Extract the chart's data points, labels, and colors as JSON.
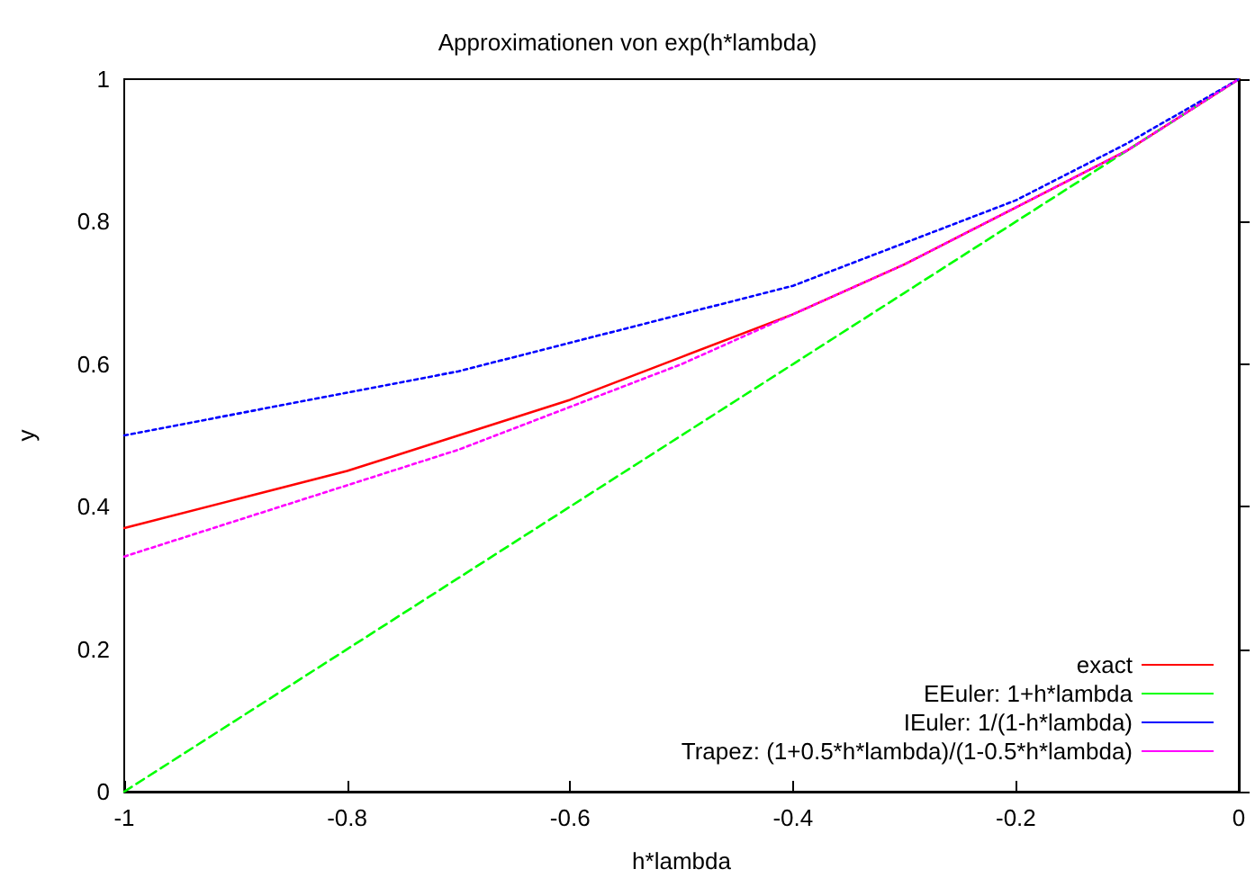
{
  "chart_data": {
    "type": "line",
    "title": "Approximationen von exp(h*lambda)",
    "xlabel": "h*lambda",
    "ylabel": "y",
    "x": [
      -1,
      -0.9,
      -0.8,
      -0.7,
      -0.6,
      -0.5,
      -0.4,
      -0.3,
      -0.2,
      -0.1,
      0
    ],
    "series": [
      {
        "name": "exact",
        "color": "#ff0000",
        "line_style": "solid",
        "values": [
          0.37,
          0.41,
          0.45,
          0.5,
          0.55,
          0.61,
          0.67,
          0.74,
          0.82,
          0.9,
          1
        ]
      },
      {
        "name": "EEuler: 1+h*lambda",
        "color": "#00ff00",
        "line_style": "dashed",
        "values": [
          0,
          0.1,
          0.2,
          0.3,
          0.4,
          0.5,
          0.6,
          0.7,
          0.8,
          0.9,
          1
        ]
      },
      {
        "name": "IEuler: 1/(1-h*lambda)",
        "color": "#0000ff",
        "line_style": "dotted",
        "values": [
          0.5,
          0.53,
          0.56,
          0.59,
          0.63,
          0.67,
          0.71,
          0.77,
          0.83,
          0.91,
          1
        ]
      },
      {
        "name": "Trapez: (1+0.5*h*lambda)/(1-0.5*h*lambda)",
        "color": "#ff00ff",
        "line_style": "dotted",
        "values": [
          0.33,
          0.38,
          0.43,
          0.48,
          0.54,
          0.6,
          0.67,
          0.74,
          0.82,
          0.9,
          1
        ]
      }
    ],
    "xlim": [
      -1,
      0
    ],
    "xticks": [
      -1,
      -0.8,
      -0.6,
      -0.4,
      -0.2,
      0
    ],
    "ylim": [
      0,
      1
    ],
    "yticks": [
      0,
      0.2,
      0.4,
      0.6,
      0.8,
      1
    ],
    "grid": false,
    "legend": "bottom right",
    "marker": "none"
  }
}
